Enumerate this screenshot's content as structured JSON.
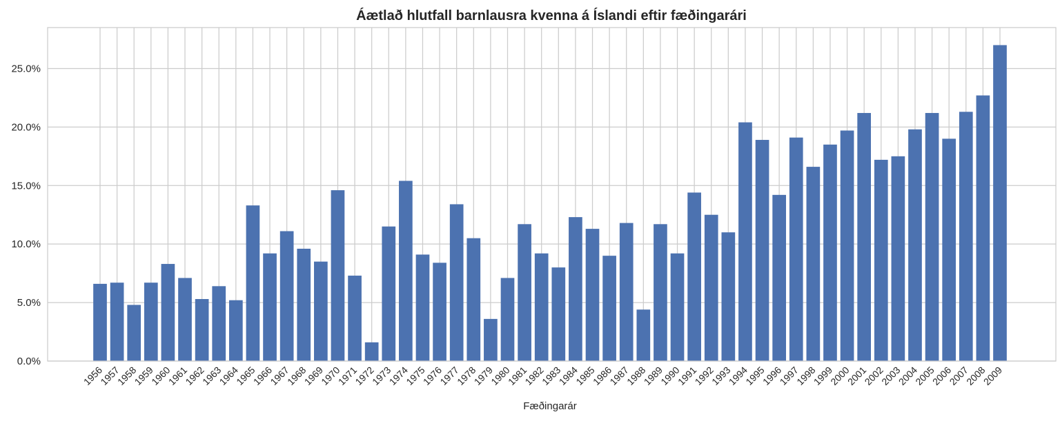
{
  "chart_data": {
    "type": "bar",
    "title": "Áætlað hlutfall barnlausra kvenna á Íslandi eftir fæðingarári",
    "xlabel": "Fæðingarár",
    "ylabel": "",
    "ylim": [
      0,
      0.285
    ],
    "yticks": [
      0.0,
      0.05,
      0.1,
      0.15,
      0.2,
      0.25
    ],
    "ytick_labels": [
      "0.0%",
      "5.0%",
      "10.0%",
      "15.0%",
      "20.0%",
      "25.0%"
    ],
    "grid": true,
    "bar_color": "#4c72b0",
    "categories": [
      "1956",
      "1957",
      "1958",
      "1959",
      "1960",
      "1961",
      "1962",
      "1963",
      "1964",
      "1965",
      "1966",
      "1967",
      "1968",
      "1969",
      "1970",
      "1971",
      "1972",
      "1973",
      "1974",
      "1975",
      "1976",
      "1977",
      "1978",
      "1979",
      "1980",
      "1981",
      "1982",
      "1983",
      "1984",
      "1985",
      "1986",
      "1987",
      "1988",
      "1989",
      "1990",
      "1991",
      "1992",
      "1993",
      "1994",
      "1995",
      "1996",
      "1997",
      "1998",
      "1999",
      "2000",
      "2001",
      "2002",
      "2003",
      "2004",
      "2005",
      "2006",
      "2007",
      "2008",
      "2009"
    ],
    "values": [
      0.066,
      0.067,
      0.048,
      0.067,
      0.083,
      0.071,
      0.053,
      0.064,
      0.052,
      0.133,
      0.092,
      0.111,
      0.096,
      0.085,
      0.146,
      0.073,
      0.016,
      0.115,
      0.154,
      0.091,
      0.084,
      0.134,
      0.105,
      0.036,
      0.071,
      0.117,
      0.092,
      0.08,
      0.123,
      0.113,
      0.09,
      0.118,
      0.044,
      0.117,
      0.092,
      0.144,
      0.125,
      0.11,
      0.204,
      0.189,
      0.142,
      0.191,
      0.166,
      0.185,
      0.197,
      0.212,
      0.172,
      0.175,
      0.198,
      0.212,
      0.19,
      0.213,
      0.227,
      0.27
    ]
  }
}
